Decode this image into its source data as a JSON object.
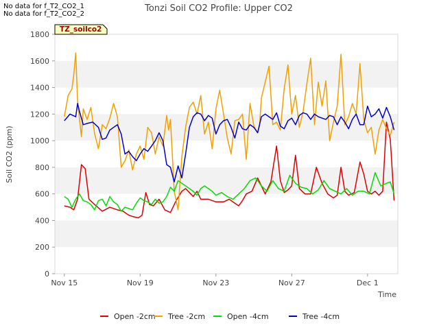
{
  "notes": [
    "No data for f_T2_CO2_1",
    "No data for f_T2_CO2_2"
  ],
  "colors": {
    "open_2cm": "#dd0000",
    "tree_2cm": "#f0a000",
    "open_4cm": "#00dd00",
    "tree_4cm": "#0000cc",
    "band": "#f2f2f2",
    "tag_bg": "#ffffc0",
    "tag_text": "#990000"
  },
  "chart_data": {
    "type": "line",
    "title": "Tonzi Soil CO2 Profile: Upper CO2",
    "xlabel": "Time",
    "ylabel": "Soil CO2 (ppm)",
    "tag": "TZ_soilco2",
    "x_unit": "days since Nov 15",
    "xlim": [
      -0.5,
      17.6
    ],
    "ylim": [
      0,
      1800
    ],
    "x_ticks": [
      {
        "x": 0,
        "label": "Nov 15"
      },
      {
        "x": 4,
        "label": "Nov 19"
      },
      {
        "x": 8,
        "label": "Nov 23"
      },
      {
        "x": 12,
        "label": "Nov 27"
      },
      {
        "x": 16,
        "label": "Dec 1"
      }
    ],
    "y_ticks": [
      0,
      200,
      400,
      600,
      800,
      1000,
      1200,
      1400,
      1600,
      1800
    ],
    "grid": "alternating horizontal bands",
    "legend_position": "bottom",
    "series": [
      {
        "name": "Open -2cm",
        "color_key": "open_2cm",
        "x": [
          0,
          0.3,
          0.5,
          0.7,
          0.9,
          1.1,
          1.3,
          1.6,
          2.0,
          2.4,
          2.8,
          3.1,
          3.4,
          3.6,
          3.9,
          4.1,
          4.3,
          4.5,
          4.7,
          5.0,
          5.3,
          5.6,
          5.9,
          6.2,
          6.4,
          6.6,
          6.8,
          7.0,
          7.2,
          7.6,
          8.0,
          8.4,
          8.7,
          9.0,
          9.2,
          9.4,
          9.6,
          9.9,
          10.2,
          10.4,
          10.6,
          10.9,
          11.2,
          11.4,
          11.6,
          11.8,
          12.0,
          12.2,
          12.4,
          12.7,
          13.0,
          13.3,
          13.6,
          13.9,
          14.2,
          14.4,
          14.6,
          14.8,
          15.0,
          15.3,
          15.6,
          15.8,
          16.0,
          16.2,
          16.4,
          16.6,
          16.8,
          17.0,
          17.2,
          17.4
        ],
        "y": [
          510,
          500,
          480,
          560,
          820,
          790,
          560,
          520,
          470,
          500,
          480,
          470,
          440,
          430,
          420,
          440,
          610,
          520,
          510,
          560,
          480,
          460,
          550,
          620,
          640,
          610,
          580,
          620,
          560,
          560,
          540,
          540,
          560,
          530,
          510,
          550,
          600,
          620,
          720,
          660,
          600,
          690,
          960,
          700,
          610,
          630,
          660,
          890,
          640,
          600,
          600,
          800,
          680,
          600,
          570,
          590,
          800,
          620,
          590,
          610,
          840,
          750,
          620,
          600,
          620,
          590,
          620,
          1140,
          1010,
          550
        ]
      },
      {
        "name": "Tree -2cm",
        "color_key": "tree_2cm",
        "x": [
          0,
          0.2,
          0.4,
          0.5,
          0.6,
          0.7,
          0.8,
          0.9,
          1.0,
          1.2,
          1.4,
          1.6,
          1.8,
          2.0,
          2.2,
          2.4,
          2.6,
          2.8,
          3.0,
          3.2,
          3.4,
          3.6,
          3.8,
          4.0,
          4.2,
          4.4,
          4.6,
          4.8,
          5.0,
          5.2,
          5.4,
          5.5,
          5.6,
          5.8,
          6.0,
          6.2,
          6.4,
          6.6,
          6.8,
          7.0,
          7.2,
          7.4,
          7.6,
          7.8,
          8.0,
          8.2,
          8.4,
          8.6,
          8.8,
          9.0,
          9.2,
          9.4,
          9.6,
          9.8,
          10.0,
          10.2,
          10.3,
          10.4,
          10.6,
          10.8,
          11.0,
          11.2,
          11.4,
          11.6,
          11.8,
          12.0,
          12.2,
          12.4,
          12.6,
          12.8,
          13.0,
          13.2,
          13.4,
          13.6,
          13.8,
          14.0,
          14.2,
          14.4,
          14.6,
          14.8,
          15.0,
          15.2,
          15.4,
          15.6,
          15.8,
          16.0,
          16.2,
          16.4,
          16.6,
          16.8,
          17.0,
          17.2,
          17.4
        ],
        "y": [
          1180,
          1340,
          1390,
          1500,
          1660,
          1300,
          1160,
          1030,
          1240,
          1160,
          1250,
          1050,
          940,
          1120,
          1090,
          1170,
          1280,
          1180,
          800,
          850,
          930,
          780,
          900,
          960,
          860,
          1100,
          1060,
          900,
          1030,
          960,
          1190,
          1080,
          1160,
          620,
          480,
          880,
          1100,
          1250,
          1290,
          1200,
          1340,
          1050,
          1140,
          940,
          1240,
          1380,
          1200,
          1020,
          900,
          1150,
          1160,
          1200,
          860,
          1280,
          1110,
          1060,
          1110,
          1320,
          1440,
          1560,
          1120,
          1140,
          1080,
          1390,
          1570,
          1200,
          1340,
          1100,
          1220,
          1430,
          1620,
          1120,
          1440,
          1260,
          1450,
          1000,
          1140,
          1260,
          1650,
          1120,
          1180,
          1280,
          1200,
          1580,
          1160,
          1060,
          1100,
          900,
          1080,
          1160,
          1090,
          1040,
          1140
        ]
      },
      {
        "name": "Open -4cm",
        "color_key": "open_4cm",
        "x": [
          0,
          0.2,
          0.4,
          0.6,
          0.8,
          1.0,
          1.2,
          1.4,
          1.6,
          1.8,
          2.0,
          2.2,
          2.4,
          2.6,
          2.8,
          3.0,
          3.2,
          3.4,
          3.6,
          3.8,
          4.0,
          4.2,
          4.4,
          4.6,
          4.8,
          5.0,
          5.2,
          5.4,
          5.6,
          5.8,
          6.0,
          6.2,
          6.4,
          6.6,
          6.8,
          7.0,
          7.2,
          7.4,
          7.6,
          7.8,
          8.0,
          8.3,
          8.6,
          8.9,
          9.2,
          9.5,
          9.8,
          10.1,
          10.4,
          10.7,
          11.0,
          11.3,
          11.6,
          11.9,
          12.2,
          12.5,
          12.8,
          13.1,
          13.4,
          13.7,
          14.0,
          14.3,
          14.6,
          14.9,
          15.2,
          15.5,
          15.8,
          16.1,
          16.4,
          16.7,
          17.0,
          17.2,
          17.4
        ],
        "y": [
          580,
          560,
          500,
          560,
          600,
          550,
          540,
          520,
          480,
          550,
          560,
          510,
          580,
          540,
          520,
          470,
          500,
          490,
          480,
          530,
          570,
          550,
          540,
          520,
          560,
          530,
          540,
          580,
          650,
          620,
          700,
          680,
          660,
          640,
          620,
          590,
          640,
          660,
          640,
          620,
          590,
          610,
          580,
          560,
          600,
          640,
          700,
          720,
          660,
          620,
          700,
          640,
          620,
          740,
          680,
          650,
          640,
          600,
          630,
          700,
          640,
          620,
          600,
          640,
          590,
          620,
          620,
          600,
          760,
          660,
          680,
          690,
          600
        ]
      },
      {
        "name": "Tree -4cm",
        "color_key": "tree_4cm",
        "x": [
          0,
          0.3,
          0.6,
          0.7,
          0.8,
          1.0,
          1.2,
          1.5,
          1.8,
          2.0,
          2.2,
          2.4,
          2.6,
          2.8,
          3.0,
          3.2,
          3.4,
          3.6,
          3.8,
          4.0,
          4.2,
          4.4,
          4.6,
          4.8,
          5.0,
          5.2,
          5.4,
          5.6,
          5.8,
          6.0,
          6.2,
          6.4,
          6.6,
          6.8,
          7.0,
          7.2,
          7.4,
          7.6,
          7.8,
          8.0,
          8.2,
          8.4,
          8.6,
          8.8,
          9.0,
          9.2,
          9.4,
          9.6,
          9.8,
          10.0,
          10.2,
          10.4,
          10.6,
          10.8,
          11.0,
          11.2,
          11.4,
          11.6,
          11.8,
          12.0,
          12.2,
          12.4,
          12.6,
          12.8,
          13.0,
          13.2,
          13.4,
          13.6,
          13.8,
          14.0,
          14.2,
          14.4,
          14.6,
          14.8,
          15.0,
          15.2,
          15.4,
          15.6,
          15.8,
          16.0,
          16.2,
          16.4,
          16.6,
          16.8,
          17.0,
          17.2,
          17.4
        ],
        "y": [
          1150,
          1200,
          1180,
          1280,
          1220,
          1120,
          1130,
          1140,
          1100,
          1010,
          1020,
          1080,
          1100,
          1120,
          1050,
          900,
          920,
          880,
          850,
          900,
          940,
          920,
          960,
          1000,
          1060,
          1000,
          820,
          800,
          690,
          810,
          720,
          900,
          1100,
          1180,
          1210,
          1200,
          1150,
          1190,
          1170,
          1050,
          1120,
          1150,
          1160,
          1100,
          1020,
          1140,
          1090,
          1080,
          1120,
          1100,
          1060,
          1180,
          1200,
          1180,
          1160,
          1210,
          1110,
          1090,
          1150,
          1170,
          1120,
          1190,
          1210,
          1200,
          1160,
          1200,
          1180,
          1170,
          1160,
          1190,
          1180,
          1120,
          1180,
          1140,
          1090,
          1160,
          1200,
          1120,
          1120,
          1260,
          1180,
          1200,
          1240,
          1170,
          1250,
          1180,
          1080
        ]
      }
    ]
  }
}
